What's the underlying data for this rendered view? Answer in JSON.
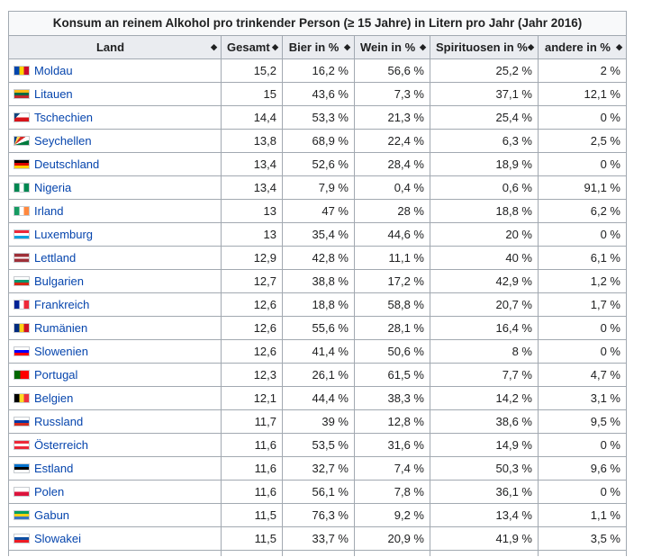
{
  "caption": "Konsum an reinem Alkohol pro trinkender Person (≥ 15 Jahre) in Litern pro Jahr (Jahr 2016)",
  "headers": [
    "Land",
    "Gesamt",
    "Bier in %",
    "Wein in %",
    "Spirituosen in %",
    "andere in %"
  ],
  "sort_icon": "sort-arrows-icon",
  "rows": [
    {
      "land": "Moldau",
      "gesamt": "15,2",
      "bier": "16,2 %",
      "wein": "56,6 %",
      "spir": "25,2 %",
      "andere": "2 %",
      "flag": [
        "#0046ae",
        "#ffd200",
        "#cc092f"
      ],
      "flag_dir": "v"
    },
    {
      "land": "Litauen",
      "gesamt": "15",
      "bier": "43,6 %",
      "wein": "7,3 %",
      "spir": "37,1 %",
      "andere": "12,1 %",
      "flag": [
        "#fdb913",
        "#006a44",
        "#c1272d"
      ],
      "flag_dir": "h"
    },
    {
      "land": "Tschechien",
      "gesamt": "14,4",
      "bier": "53,3 %",
      "wein": "21,3 %",
      "spir": "25,4 %",
      "andere": "0 %",
      "flag": [
        "#ffffff",
        "#d7141a",
        "#11457e"
      ],
      "flag_dir": "cz"
    },
    {
      "land": "Seychellen",
      "gesamt": "13,8",
      "bier": "68,9 %",
      "wein": "22,4 %",
      "spir": "6,3 %",
      "andere": "2,5 %",
      "flag": [
        "#003f87",
        "#fcd856",
        "#d62828",
        "#ffffff",
        "#007a3d"
      ],
      "flag_dir": "sc"
    },
    {
      "land": "Deutschland",
      "gesamt": "13,4",
      "bier": "52,6 %",
      "wein": "28,4 %",
      "spir": "18,9 %",
      "andere": "0 %",
      "flag": [
        "#000000",
        "#dd0000",
        "#ffce00"
      ],
      "flag_dir": "h"
    },
    {
      "land": "Nigeria",
      "gesamt": "13,4",
      "bier": "7,9 %",
      "wein": "0,4 %",
      "spir": "0,6 %",
      "andere": "91,1 %",
      "flag": [
        "#008751",
        "#ffffff",
        "#008751"
      ],
      "flag_dir": "v"
    },
    {
      "land": "Irland",
      "gesamt": "13",
      "bier": "47 %",
      "wein": "28 %",
      "spir": "18,8 %",
      "andere": "6,2 %",
      "flag": [
        "#169b62",
        "#ffffff",
        "#ff883e"
      ],
      "flag_dir": "v"
    },
    {
      "land": "Luxemburg",
      "gesamt": "13",
      "bier": "35,4 %",
      "wein": "44,6 %",
      "spir": "20 %",
      "andere": "0 %",
      "flag": [
        "#ed2939",
        "#ffffff",
        "#00a1de"
      ],
      "flag_dir": "h"
    },
    {
      "land": "Lettland",
      "gesamt": "12,9",
      "bier": "42,8 %",
      "wein": "11,1 %",
      "spir": "40 %",
      "andere": "6,1 %",
      "flag": [
        "#9e3039",
        "#ffffff",
        "#9e3039"
      ],
      "flag_dir": "lv"
    },
    {
      "land": "Bulgarien",
      "gesamt": "12,7",
      "bier": "38,8 %",
      "wein": "17,2 %",
      "spir": "42,9 %",
      "andere": "1,2 %",
      "flag": [
        "#ffffff",
        "#00966e",
        "#d62612"
      ],
      "flag_dir": "h"
    },
    {
      "land": "Frankreich",
      "gesamt": "12,6",
      "bier": "18,8 %",
      "wein": "58,8 %",
      "spir": "20,7 %",
      "andere": "1,7 %",
      "flag": [
        "#002395",
        "#ffffff",
        "#ed2939"
      ],
      "flag_dir": "v"
    },
    {
      "land": "Rumänien",
      "gesamt": "12,6",
      "bier": "55,6 %",
      "wein": "28,1 %",
      "spir": "16,4 %",
      "andere": "0 %",
      "flag": [
        "#002b7f",
        "#fcd116",
        "#ce1126"
      ],
      "flag_dir": "v"
    },
    {
      "land": "Slowenien",
      "gesamt": "12,6",
      "bier": "41,4 %",
      "wein": "50,6 %",
      "spir": "8 %",
      "andere": "0 %",
      "flag": [
        "#ffffff",
        "#0000ff",
        "#ff0000"
      ],
      "flag_dir": "h"
    },
    {
      "land": "Portugal",
      "gesamt": "12,3",
      "bier": "26,1 %",
      "wein": "61,5 %",
      "spir": "7,7 %",
      "andere": "4,7 %",
      "flag": [
        "#006600",
        "#ff0000",
        "#ff0000"
      ],
      "flag_dir": "pt"
    },
    {
      "land": "Belgien",
      "gesamt": "12,1",
      "bier": "44,4 %",
      "wein": "38,3 %",
      "spir": "14,2 %",
      "andere": "3,1 %",
      "flag": [
        "#000000",
        "#fdda24",
        "#ef3340"
      ],
      "flag_dir": "v"
    },
    {
      "land": "Russland",
      "gesamt": "11,7",
      "bier": "39 %",
      "wein": "12,8 %",
      "spir": "38,6 %",
      "andere": "9,5 %",
      "flag": [
        "#ffffff",
        "#0039a6",
        "#d52b1e"
      ],
      "flag_dir": "h"
    },
    {
      "land": "Österreich",
      "gesamt": "11,6",
      "bier": "53,5 %",
      "wein": "31,6 %",
      "spir": "14,9 %",
      "andere": "0 %",
      "flag": [
        "#ed2939",
        "#ffffff",
        "#ed2939"
      ],
      "flag_dir": "h"
    },
    {
      "land": "Estland",
      "gesamt": "11,6",
      "bier": "32,7 %",
      "wein": "7,4 %",
      "spir": "50,3 %",
      "andere": "9,6 %",
      "flag": [
        "#0072ce",
        "#000000",
        "#ffffff"
      ],
      "flag_dir": "h"
    },
    {
      "land": "Polen",
      "gesamt": "11,6",
      "bier": "56,1 %",
      "wein": "7,8 %",
      "spir": "36,1 %",
      "andere": "0 %",
      "flag": [
        "#ffffff",
        "#dc143c"
      ],
      "flag_dir": "h2"
    },
    {
      "land": "Gabun",
      "gesamt": "11,5",
      "bier": "76,3 %",
      "wein": "9,2 %",
      "spir": "13,4 %",
      "andere": "1,1 %",
      "flag": [
        "#009e60",
        "#fcd116",
        "#3a75c4"
      ],
      "flag_dir": "h"
    },
    {
      "land": "Slowakei",
      "gesamt": "11,5",
      "bier": "33,7 %",
      "wein": "20,9 %",
      "spir": "41,9 %",
      "andere": "3,5 %",
      "flag": [
        "#ffffff",
        "#0b4ea2",
        "#ee1c25"
      ],
      "flag_dir": "h"
    }
  ]
}
